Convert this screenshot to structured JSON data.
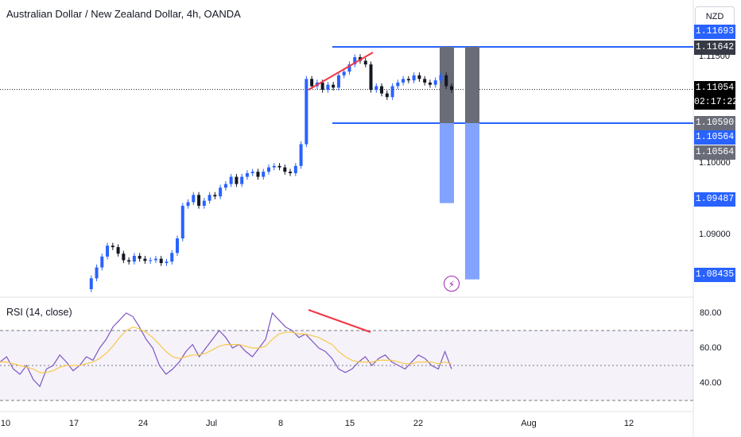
{
  "header": {
    "title": "Australian Dollar / New Zealand Dollar, 4h, OANDA",
    "currency": "NZD"
  },
  "rsi": {
    "label": "RSI (14, close)",
    "ticks": [
      "80.00",
      "60.00",
      "40.00"
    ]
  },
  "price_axis": {
    "labels": [
      "1.11500",
      "1.10000",
      "1.09000"
    ]
  },
  "price_tags": [
    {
      "text": "1.11693",
      "color": "#2962ff"
    },
    {
      "text": "1.11642",
      "color": "#363a45"
    },
    {
      "text": "1.11054",
      "color": "#000000"
    },
    {
      "text": "02:17:22",
      "color": "#000000"
    },
    {
      "text": "1.10590",
      "color": "#6a6d78"
    },
    {
      "text": "1.10564",
      "color": "#2962ff"
    },
    {
      "text": "1.10564",
      "color": "#6a6d78"
    },
    {
      "text": "1.09487",
      "color": "#2962ff"
    },
    {
      "text": "1.08435",
      "color": "#2962ff"
    }
  ],
  "x_axis": {
    "labels": [
      "10",
      "17",
      "24",
      "Jul",
      "8",
      "15",
      "22",
      "Aug",
      "12"
    ]
  },
  "icons": {
    "alert": "lightning-alert-icon"
  },
  "chart_data": [
    {
      "type": "candlestick",
      "title": "Australian Dollar / New Zealand Dollar, 4h, OANDA",
      "y_ticks": [
        1.115,
        1.1,
        1.09
      ],
      "current_price": 1.11054,
      "countdown": "02:17:22",
      "horizontal_levels": [
        1.11642,
        1.1059
      ],
      "target_levels": [
        1.09487,
        1.08435
      ],
      "series_close": [
        1.083,
        1.0845,
        1.086,
        1.0875,
        1.089,
        1.0888,
        1.0879,
        1.087,
        1.0868,
        1.0876,
        1.0872,
        1.0869,
        1.087,
        1.0872,
        1.0866,
        1.0868,
        1.088,
        1.09,
        1.0945,
        1.095,
        1.096,
        1.0945,
        1.0952,
        1.096,
        1.0958,
        1.097,
        1.0975,
        1.0985,
        1.0975,
        1.0985,
        1.099,
        1.0992,
        1.0985,
        1.0992,
        1.0998,
        1.1,
        1.0998,
        1.0992,
        1.099,
        1.1,
        1.103,
        1.112,
        1.111,
        1.1115,
        1.1105,
        1.1112,
        1.1108,
        1.1125,
        1.113,
        1.114,
        1.115,
        1.1145,
        1.114,
        1.1105,
        1.111,
        1.11,
        1.1095,
        1.111,
        1.1115,
        1.112,
        1.1118,
        1.1125,
        1.112,
        1.1115,
        1.1112,
        1.1118,
        1.1125,
        1.111,
        1.1105
      ],
      "x_labels": [
        "10",
        "17",
        "24",
        "Jul",
        "8",
        "15",
        "22",
        "Aug",
        "12"
      ]
    },
    {
      "type": "line",
      "title": "RSI (14, close)",
      "ylim": [
        30,
        85
      ],
      "bands": [
        70,
        50,
        30
      ],
      "y_ticks": [
        80,
        60,
        40
      ],
      "series": [
        {
          "values": [
            52,
            55,
            48,
            45,
            50,
            42,
            38,
            48,
            50,
            56,
            52,
            47,
            50,
            55,
            53,
            60,
            65,
            72,
            76,
            80,
            78,
            72,
            65,
            60,
            50,
            45,
            48,
            52,
            58,
            62,
            55,
            60,
            65,
            70,
            66,
            60,
            62,
            58,
            55,
            60,
            65,
            80,
            76,
            72,
            70,
            66,
            68,
            64,
            60,
            58,
            54,
            48,
            46,
            48,
            52,
            55,
            50,
            54,
            56,
            52,
            50,
            48,
            52,
            56,
            54,
            50,
            48,
            58,
            48
          ]
        },
        {
          "values": [
            52,
            52,
            51,
            50,
            49,
            48,
            46,
            46,
            47,
            49,
            50,
            50,
            50,
            51,
            52,
            54,
            57,
            61,
            66,
            70,
            72,
            71,
            69,
            66,
            62,
            58,
            55,
            54,
            55,
            56,
            56,
            57,
            59,
            61,
            62,
            62,
            62,
            61,
            60,
            60,
            61,
            65,
            68,
            69,
            69,
            68,
            68,
            67,
            66,
            64,
            62,
            58,
            55,
            53,
            52,
            52,
            52,
            53,
            53,
            53,
            52,
            51,
            51,
            52,
            52,
            52,
            51,
            52,
            51
          ]
        }
      ]
    }
  ]
}
